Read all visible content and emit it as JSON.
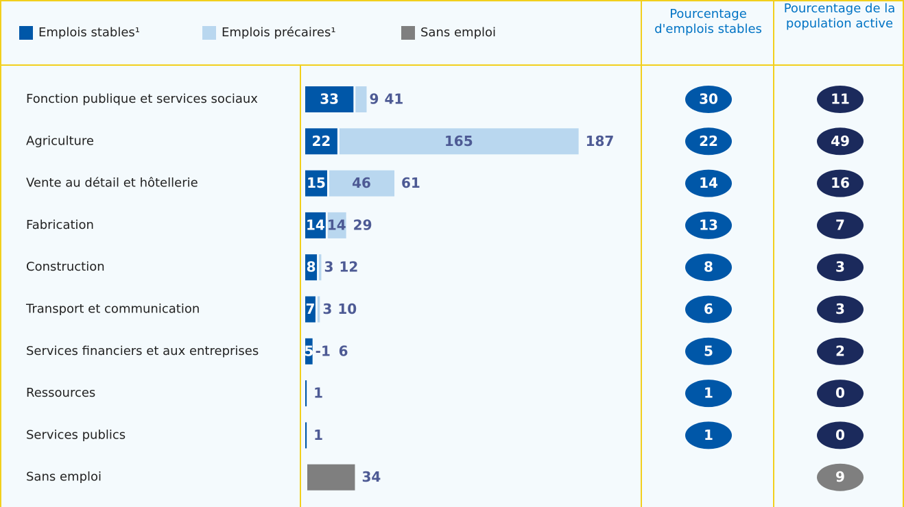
{
  "chart_data": {
    "type": "bar",
    "orientation": "horizontal",
    "stacked": true,
    "categories": [
      "Fonction publique et services sociaux",
      "Agriculture",
      "Vente au détail et hôtellerie",
      "Fabrication",
      "Construction",
      "Transport et communication",
      "Services financiers et aux entreprises",
      "Ressources",
      "Services publics",
      "Sans emploi"
    ],
    "series": [
      {
        "name": "Emplois stables¹",
        "color": "#0057a8",
        "values": [
          33,
          22,
          15,
          14,
          8,
          7,
          5,
          1,
          1,
          null
        ]
      },
      {
        "name": "Emplois précaires¹",
        "color": "#b9d7ef",
        "values": [
          9,
          165,
          46,
          14,
          3,
          3,
          -1,
          null,
          null,
          null
        ]
      },
      {
        "name": "Sans emploi",
        "color": "#7f7f7f",
        "values": [
          null,
          null,
          null,
          null,
          null,
          null,
          null,
          null,
          null,
          34
        ]
      }
    ],
    "totals": [
      41,
      187,
      61,
      29,
      12,
      10,
      6,
      1,
      1,
      34
    ],
    "xlim": [
      0,
      190
    ],
    "columns": [
      {
        "title": "Pourcentage d'emplois stables",
        "color": "#0057a8",
        "values": [
          30,
          22,
          14,
          13,
          8,
          6,
          5,
          1,
          1,
          null
        ]
      },
      {
        "title": "Pourcentage de la population active",
        "color": "#1b2a5c",
        "values": [
          11,
          49,
          16,
          7,
          3,
          3,
          2,
          0,
          0,
          9
        ]
      }
    ]
  }
}
